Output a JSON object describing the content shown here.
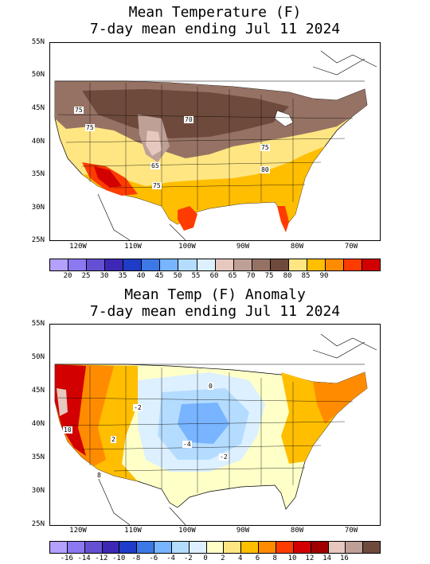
{
  "top": {
    "title_line1": "Mean Temperature (F)",
    "title_line2": "7-day mean ending Jul 11 2024",
    "lat_labels": [
      "55N",
      "50N",
      "45N",
      "40N",
      "35N",
      "30N",
      "25N"
    ],
    "lon_labels": [
      "120W",
      "110W",
      "100W",
      "90W",
      "80W",
      "70W"
    ],
    "colorbar_labels": [
      "20",
      "25",
      "30",
      "35",
      "40",
      "45",
      "50",
      "55",
      "60",
      "65",
      "70",
      "75",
      "80",
      "85",
      "90"
    ],
    "colorbar_colors": [
      "#b4a0ff",
      "#8c78f0",
      "#6450d2",
      "#3c28b4",
      "#1e3cc8",
      "#3c78e6",
      "#78b4ff",
      "#b4dcff",
      "#dcf0ff",
      "#e6c8be",
      "#bea096",
      "#967264",
      "#6e4a3c",
      "#ffe682",
      "#ffbe00",
      "#ff8c00",
      "#ff3c00",
      "#d20000"
    ],
    "contour_labels": [
      "75",
      "75",
      "70",
      "65",
      "75",
      "75",
      "80"
    ]
  },
  "bottom": {
    "title_line1": "Mean Temp (F) Anomaly",
    "title_line2": "7-day mean ending Jul 11 2024",
    "lat_labels": [
      "55N",
      "50N",
      "45N",
      "40N",
      "35N",
      "30N",
      "25N"
    ],
    "lon_labels": [
      "120W",
      "110W",
      "100W",
      "90W",
      "80W",
      "70W"
    ],
    "colorbar_labels": [
      "-16",
      "-14",
      "-12",
      "-10",
      "-8",
      "-6",
      "-4",
      "-2",
      "0",
      "2",
      "4",
      "6",
      "8",
      "10",
      "12",
      "14",
      "16"
    ],
    "colorbar_colors": [
      "#b4a0ff",
      "#8c78f0",
      "#6450d2",
      "#3c28b4",
      "#1e3cc8",
      "#3c78e6",
      "#78b4ff",
      "#b4dcff",
      "#dcf0ff",
      "#ffffc8",
      "#ffe682",
      "#ffbe00",
      "#ff8c00",
      "#ff3c00",
      "#d20000",
      "#a00000",
      "#e6c8be",
      "#bea096",
      "#6e4a3c"
    ],
    "contour_labels": [
      "10",
      "8",
      "2",
      "-2",
      "-4",
      "-2",
      "0"
    ]
  }
}
